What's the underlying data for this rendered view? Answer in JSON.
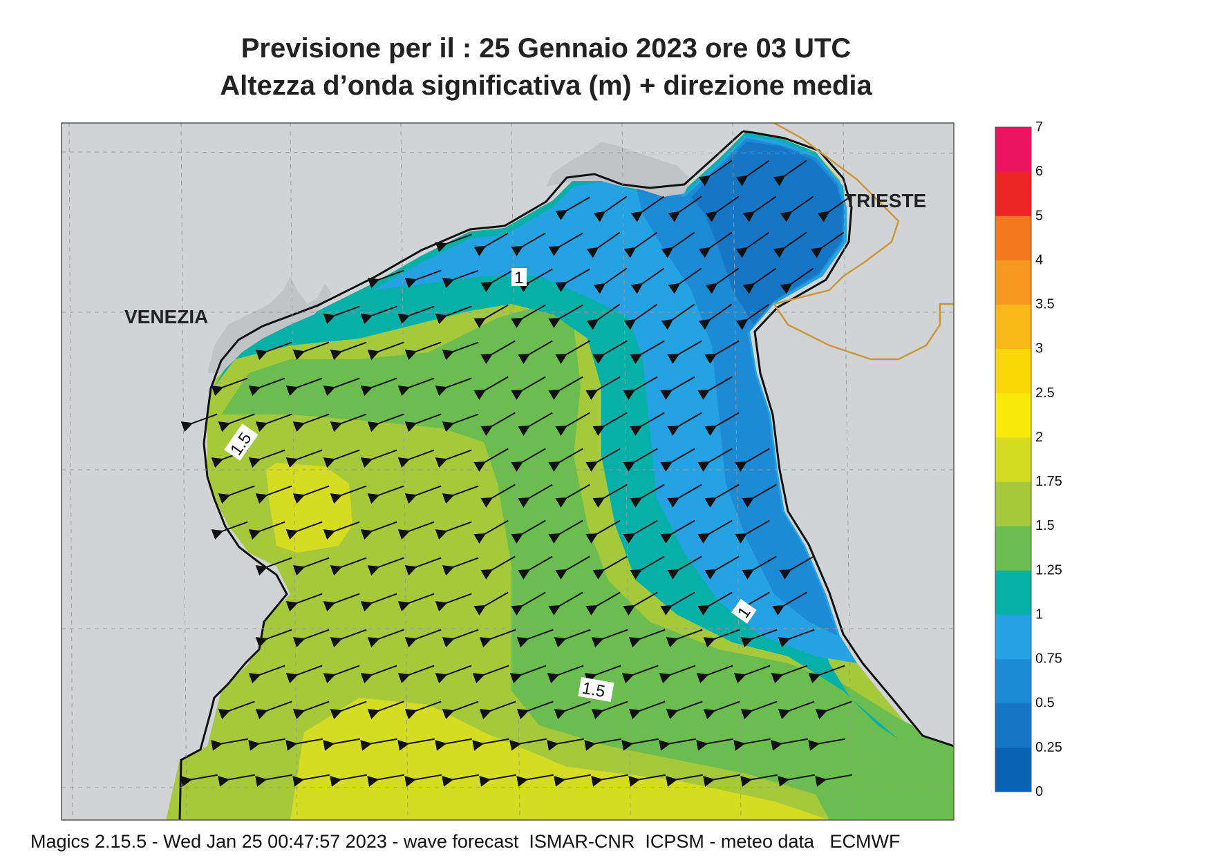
{
  "title": {
    "line1": "Previsione per il  :  25  Gennaio  2023   ore 03 UTC",
    "line2": "Altezza d’onda significativa (m) + direzione media"
  },
  "places": {
    "venezia": "VENEZIA",
    "trieste": "TRIESTE"
  },
  "contour_labels": [
    "1",
    "1.5",
    "1",
    "1.5"
  ],
  "colorbar": {
    "levels": [
      "0",
      "0.25",
      "0.5",
      "0.75",
      "1",
      "1.25",
      "1.5",
      "1.75",
      "2",
      "2.5",
      "3",
      "3.5",
      "4",
      "5",
      "6",
      "7"
    ],
    "colors": [
      "#0a62b4",
      "#1476c4",
      "#1d8ad6",
      "#25a2e4",
      "#05b0a8",
      "#6bbd50",
      "#a6c93c",
      "#d6dc22",
      "#fae808",
      "#fad808",
      "#f8b818",
      "#f89820",
      "#f47820",
      "#ec2424",
      "#ec1460"
    ]
  },
  "land_color": "#d2d3d5",
  "footer": "Magics 2.15.5 - Wed Jan 25 00:47:57 2023 - wave forecast  ISMAR-CNR  ICPSM - meteo data   ECMWF"
}
